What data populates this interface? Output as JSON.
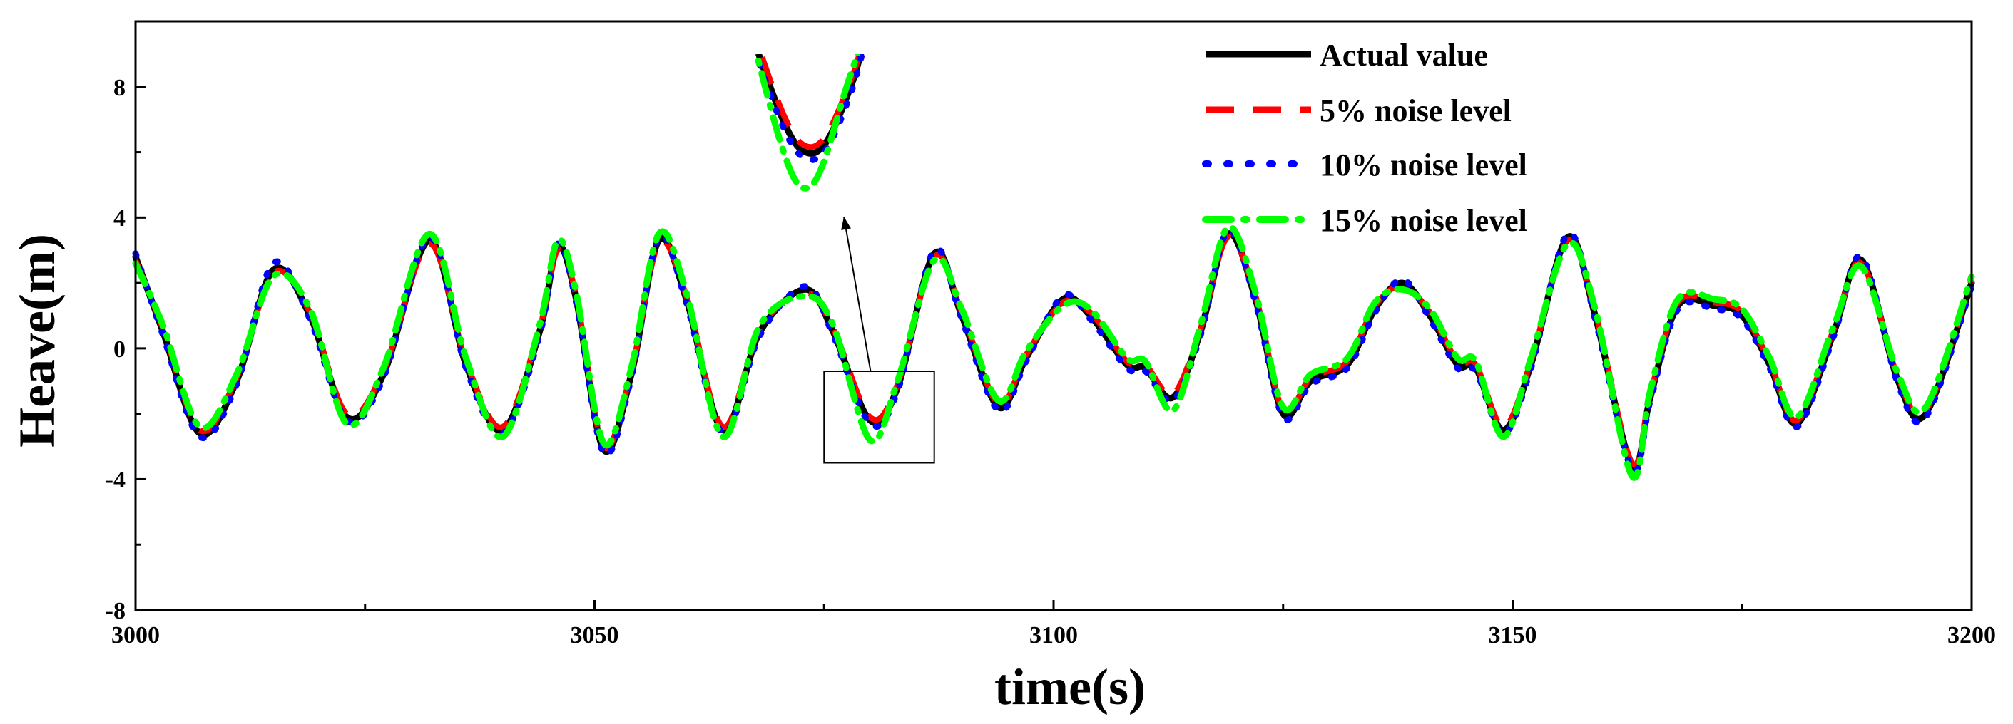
{
  "chart_data": {
    "type": "line",
    "xlabel": "time(s)",
    "ylabel": "Heave(m)",
    "xlim": [
      3000,
      3200
    ],
    "ylim": [
      -8,
      10
    ],
    "x_ticks": [
      3000,
      3050,
      3100,
      3150,
      3200
    ],
    "x_tick_labels": [
      "3000",
      "3050",
      "3100",
      "3150",
      "3200"
    ],
    "y_ticks": [
      -8,
      -4,
      0,
      4,
      8
    ],
    "y_tick_labels": [
      "-8",
      "-4",
      "0",
      "4",
      "8"
    ],
    "legend": [
      "Actual value",
      "5% noise level",
      "10% noise level",
      "15% noise level"
    ],
    "legend_position": "top-right",
    "colors": {
      "actual": "#000000",
      "noise5": "#ff0000",
      "noise10": "#0000ff",
      "noise15": "#00ff00"
    },
    "inset_region": {
      "x_range": [
        3075,
        3087
      ],
      "y_range": [
        -3.5,
        -0.7
      ]
    },
    "series": [
      {
        "name": "Actual value",
        "x": [
          3000,
          3003,
          3007,
          3011,
          3015,
          3019,
          3023,
          3027,
          3032,
          3036,
          3040,
          3044,
          3046,
          3048,
          3051,
          3054,
          3057,
          3060,
          3064,
          3068,
          3073,
          3076,
          3080,
          3083,
          3087,
          3090,
          3094,
          3097,
          3101,
          3104,
          3108,
          3110,
          3113,
          3116,
          3119,
          3122,
          3125,
          3128,
          3132,
          3135,
          3138,
          3141,
          3144,
          3146,
          3149,
          3152,
          3156,
          3159,
          3163,
          3165,
          3168,
          3172,
          3175,
          3178,
          3181,
          3185,
          3188,
          3192,
          3195,
          3200
        ],
        "values": [
          2.8,
          0.5,
          -2.6,
          -1.0,
          2.4,
          1.0,
          -2.1,
          -0.8,
          3.3,
          -0.5,
          -2.5,
          0.5,
          3.1,
          1.5,
          -3.1,
          -0.8,
          3.3,
          1.5,
          -2.5,
          0.5,
          1.8,
          0.5,
          -2.2,
          -1.2,
          2.9,
          1.0,
          -1.8,
          -0.3,
          1.5,
          1.0,
          -0.5,
          -0.6,
          -1.5,
          0.5,
          3.5,
          1.5,
          -2.0,
          -1.0,
          -0.5,
          1.2,
          2.0,
          1.0,
          -0.5,
          -0.6,
          -2.5,
          -0.5,
          3.4,
          1.0,
          -3.6,
          -1.5,
          1.3,
          1.3,
          1.0,
          -0.5,
          -2.3,
          0.5,
          2.7,
          -1.0,
          -2.0,
          2.0
        ]
      },
      {
        "name": "5% noise level",
        "x": [
          3000,
          3003,
          3007,
          3011,
          3015,
          3019,
          3023,
          3027,
          3032,
          3036,
          3040,
          3044,
          3046,
          3048,
          3051,
          3054,
          3057,
          3060,
          3064,
          3068,
          3073,
          3076,
          3080,
          3083,
          3087,
          3090,
          3094,
          3097,
          3101,
          3104,
          3108,
          3110,
          3113,
          3116,
          3119,
          3122,
          3125,
          3128,
          3132,
          3135,
          3138,
          3141,
          3144,
          3146,
          3149,
          3152,
          3156,
          3159,
          3163,
          3165,
          3168,
          3172,
          3175,
          3178,
          3181,
          3185,
          3188,
          3192,
          3195,
          3200
        ],
        "values": [
          2.7,
          0.6,
          -2.5,
          -0.9,
          2.3,
          1.1,
          -2.0,
          -0.7,
          3.2,
          -0.4,
          -2.4,
          0.6,
          3.0,
          1.6,
          -3.0,
          -0.7,
          3.2,
          1.6,
          -2.4,
          0.6,
          1.7,
          0.6,
          -2.1,
          -1.1,
          2.8,
          1.1,
          -1.7,
          -0.2,
          1.4,
          1.1,
          -0.4,
          -0.5,
          -1.4,
          0.6,
          3.4,
          1.6,
          -1.9,
          -0.9,
          -0.4,
          1.3,
          1.9,
          1.1,
          -0.4,
          -0.5,
          -2.4,
          -0.4,
          3.3,
          1.1,
          -3.5,
          -1.4,
          1.4,
          1.4,
          1.1,
          -0.4,
          -2.2,
          0.6,
          2.6,
          -0.9,
          -1.9,
          2.1
        ]
      },
      {
        "name": "10% noise level",
        "x": [
          3000,
          3003,
          3007,
          3011,
          3015,
          3019,
          3023,
          3027,
          3032,
          3036,
          3040,
          3044,
          3046,
          3048,
          3051,
          3054,
          3057,
          3060,
          3064,
          3068,
          3073,
          3076,
          3080,
          3083,
          3087,
          3090,
          3094,
          3097,
          3101,
          3104,
          3108,
          3110,
          3113,
          3116,
          3119,
          3122,
          3125,
          3128,
          3132,
          3135,
          3138,
          3141,
          3144,
          3146,
          3149,
          3152,
          3156,
          3159,
          3163,
          3165,
          3168,
          3172,
          3175,
          3178,
          3181,
          3185,
          3188,
          3192,
          3195,
          3200
        ],
        "values": [
          2.9,
          0.4,
          -2.7,
          -1.1,
          2.6,
          0.9,
          -2.2,
          -0.9,
          3.4,
          -0.6,
          -2.6,
          0.4,
          3.2,
          1.4,
          -3.2,
          -0.9,
          3.4,
          1.4,
          -2.6,
          0.4,
          1.9,
          0.4,
          -2.3,
          -1.3,
          3.0,
          0.9,
          -1.9,
          -0.4,
          1.6,
          0.9,
          -0.6,
          -0.7,
          -1.6,
          0.4,
          3.6,
          1.4,
          -2.1,
          -1.1,
          -0.6,
          1.1,
          2.1,
          0.9,
          -0.6,
          -0.7,
          -2.6,
          -0.6,
          3.5,
          0.9,
          -3.7,
          -1.6,
          1.2,
          1.2,
          0.9,
          -0.6,
          -2.4,
          0.4,
          2.8,
          -1.1,
          -2.1,
          1.9
        ]
      },
      {
        "name": "15% noise level",
        "x": [
          3000,
          3003,
          3007,
          3011,
          3015,
          3019,
          3023,
          3027,
          3032,
          3036,
          3040,
          3044,
          3046,
          3048,
          3051,
          3054,
          3057,
          3060,
          3064,
          3068,
          3073,
          3076,
          3080,
          3083,
          3087,
          3090,
          3094,
          3097,
          3101,
          3104,
          3108,
          3110,
          3113,
          3116,
          3119,
          3122,
          3125,
          3128,
          3132,
          3135,
          3138,
          3141,
          3144,
          3146,
          3149,
          3152,
          3156,
          3159,
          3163,
          3165,
          3168,
          3172,
          3175,
          3178,
          3181,
          3185,
          3188,
          3192,
          3195,
          3200
        ],
        "values": [
          2.6,
          0.7,
          -2.4,
          -0.8,
          2.2,
          1.2,
          -2.3,
          -0.6,
          3.5,
          -0.3,
          -2.7,
          0.7,
          3.3,
          1.7,
          -2.9,
          -0.6,
          3.5,
          1.7,
          -2.7,
          0.7,
          1.6,
          0.7,
          -2.8,
          -1.0,
          2.7,
          1.2,
          -1.6,
          -0.1,
          1.3,
          1.2,
          -0.3,
          -0.4,
          -1.9,
          0.7,
          3.7,
          1.7,
          -1.8,
          -0.8,
          -0.3,
          1.4,
          1.8,
          1.2,
          -0.3,
          -0.4,
          -2.7,
          -0.3,
          3.2,
          1.2,
          -3.9,
          -1.3,
          1.5,
          1.5,
          1.2,
          -0.3,
          -2.1,
          0.7,
          2.5,
          -0.8,
          -1.8,
          2.2
        ]
      }
    ]
  }
}
